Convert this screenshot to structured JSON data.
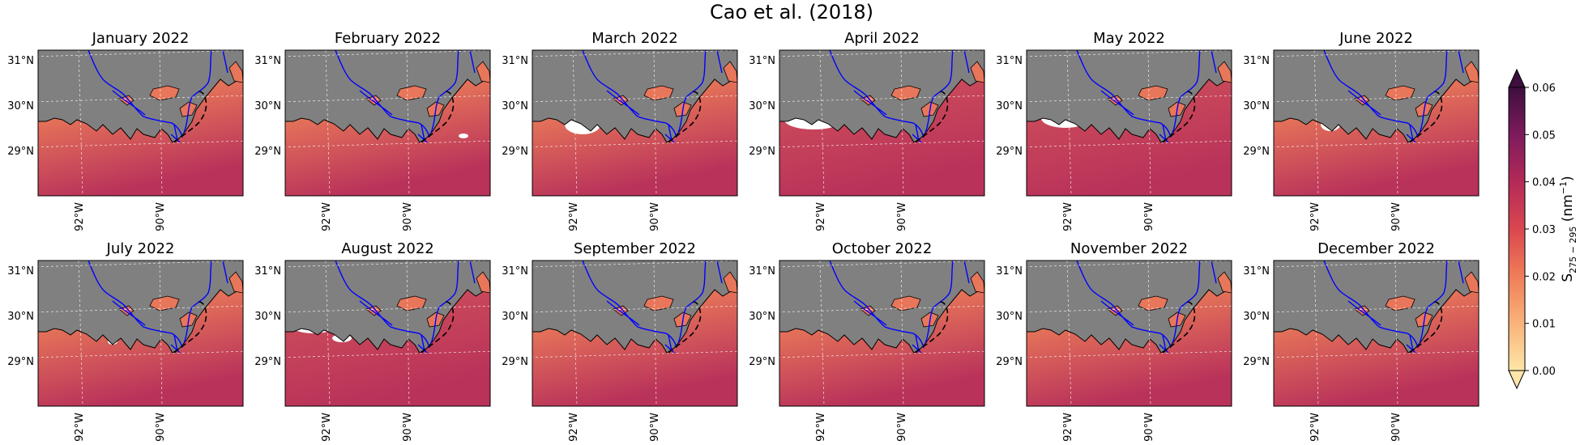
{
  "figure": {
    "title": "Cao et al. (2018)",
    "panels": [
      {
        "title": "January 2022"
      },
      {
        "title": "February 2022"
      },
      {
        "title": "March 2022"
      },
      {
        "title": "April 2022"
      },
      {
        "title": "May 2022"
      },
      {
        "title": "June 2022"
      },
      {
        "title": "July 2022"
      },
      {
        "title": "August 2022"
      },
      {
        "title": "September 2022"
      },
      {
        "title": "October 2022"
      },
      {
        "title": "November 2022"
      },
      {
        "title": "December 2022"
      }
    ],
    "lat_ticks": [
      "31°N",
      "30°N",
      "29°N"
    ],
    "lon_ticks": [
      "92°W",
      "90°W"
    ],
    "colorbar": {
      "label": "S",
      "label_subscript": "275 − 295",
      "label_units_open": " (nm",
      "label_units_sup": "−1",
      "label_units_close": ")",
      "ticks": [
        "0.00",
        "0.01",
        "0.02",
        "0.03",
        "0.04",
        "0.05",
        "0.06"
      ],
      "min": 0.0,
      "max": 0.06,
      "extend": "both",
      "colormap": [
        "#fde6a8",
        "#f9b37a",
        "#ef7d59",
        "#d9474f",
        "#b32a58",
        "#7d1b5c",
        "#3d0f3f"
      ]
    },
    "colors": {
      "land": "#808080",
      "rivers": "#0000ff",
      "coastline": "#000000",
      "dashed_contour": "#000000",
      "gridlines": "#ffffff",
      "no_data": "#ffffff"
    }
  }
}
